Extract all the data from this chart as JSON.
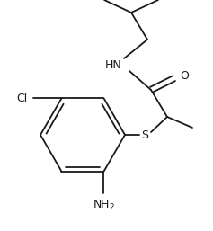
{
  "bg_color": "#ffffff",
  "fig_width": 2.37,
  "fig_height": 2.57,
  "dpi": 100,
  "line_color": "#1a1a1a",
  "line_width": 1.3,
  "font_size": 8.5,
  "xlim": [
    0,
    237
  ],
  "ylim": [
    0,
    257
  ]
}
